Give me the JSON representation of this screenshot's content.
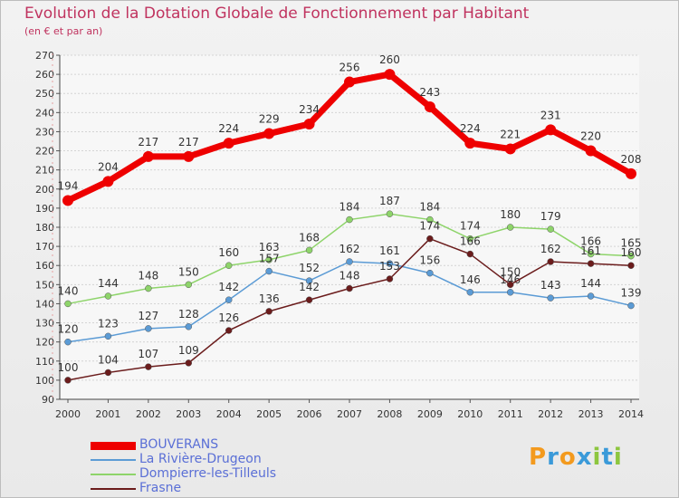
{
  "header": {
    "title": "Evolution de la Dotation Globale de Fonctionnement par Habitant",
    "subtitle": "(en € et par an)"
  },
  "logo": {
    "text": "Proxiti",
    "colors": [
      "#f39a1e",
      "#3a9ad9",
      "#f39a1e",
      "#3a9ad9",
      "#8dc63f",
      "#3a9ad9",
      "#8dc63f"
    ]
  },
  "chart_data": {
    "type": "line",
    "title": "Evolution de la Dotation Globale de Fonctionnement par Habitant",
    "subtitle": "(en € et par an)",
    "x": [
      "2000",
      "2001",
      "2002",
      "2003",
      "2004",
      "2005",
      "2006",
      "2007",
      "2008",
      "2009",
      "2010",
      "2011",
      "2012",
      "2013",
      "2014"
    ],
    "ylim": [
      90,
      270
    ],
    "yticks": [
      90,
      100,
      110,
      120,
      130,
      140,
      150,
      160,
      170,
      180,
      190,
      200,
      210,
      220,
      230,
      240,
      250,
      260,
      270
    ],
    "grid": true,
    "legend_position": "bottom-left",
    "series": [
      {
        "name": "BOUVERANS",
        "color": "#ee0000",
        "values": [
          194,
          204,
          217,
          217,
          224,
          229,
          234,
          256,
          260,
          243,
          224,
          221,
          231,
          220,
          208
        ],
        "labels": [
          "194",
          "204",
          "217",
          "217",
          "224",
          "229",
          "234",
          "256",
          "260",
          "243",
          "224",
          "221",
          "231",
          "220",
          "208"
        ]
      },
      {
        "name": "La Rivière-Drugeon",
        "color": "#5b9bd5",
        "values": [
          120,
          123,
          127,
          128,
          142,
          157,
          152,
          162,
          161,
          156,
          146,
          146,
          143,
          144,
          139
        ],
        "labels": [
          "120",
          "123",
          "127",
          "128",
          "142",
          "157",
          "152",
          "162",
          "161",
          "156",
          "146",
          "146",
          "143",
          "144",
          "139"
        ]
      },
      {
        "name": "Dompierre-les-Tilleuls",
        "color": "#8ed46a",
        "values": [
          140,
          144,
          148,
          150,
          160,
          163,
          168,
          184,
          187,
          184,
          174,
          180,
          179,
          166,
          165
        ],
        "labels": [
          "140",
          "144",
          "148",
          "150",
          "160",
          "163",
          "168",
          "184",
          "187",
          "184",
          "174",
          "180",
          "179",
          "166",
          "165"
        ]
      },
      {
        "name": "Frasne",
        "color": "#6b1c1c",
        "values": [
          100,
          104,
          107,
          109,
          126,
          136,
          142,
          148,
          153,
          174,
          166,
          150,
          162,
          161,
          160
        ],
        "labels": [
          "100",
          "104",
          "107",
          "109",
          "126",
          "136",
          "142",
          "148",
          "153",
          "174",
          "166",
          "150",
          "162",
          "161",
          "160"
        ]
      }
    ]
  }
}
